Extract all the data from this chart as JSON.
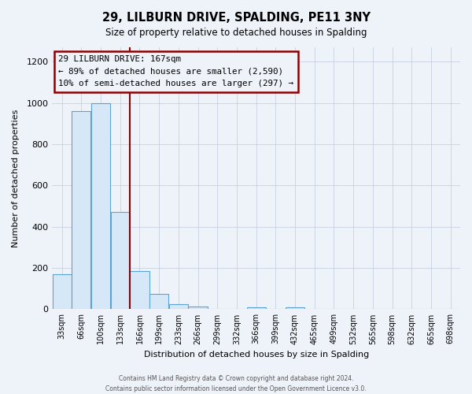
{
  "title": "29, LILBURN DRIVE, SPALDING, PE11 3NY",
  "subtitle": "Size of property relative to detached houses in Spalding",
  "xlabel": "Distribution of detached houses by size in Spalding",
  "ylabel": "Number of detached properties",
  "bin_labels": [
    "33sqm",
    "66sqm",
    "100sqm",
    "133sqm",
    "166sqm",
    "199sqm",
    "233sqm",
    "266sqm",
    "299sqm",
    "332sqm",
    "366sqm",
    "399sqm",
    "432sqm",
    "465sqm",
    "499sqm",
    "532sqm",
    "565sqm",
    "598sqm",
    "632sqm",
    "665sqm",
    "698sqm"
  ],
  "heights": [
    170,
    960,
    1000,
    470,
    185,
    75,
    25,
    15,
    0,
    0,
    10,
    0,
    10,
    0,
    0,
    0,
    0,
    0,
    0,
    0,
    0
  ],
  "bar_fill": "#d6e8f7",
  "bar_edge": "#5ba3d0",
  "property_bar_index": 4,
  "property_line_color": "#8b0000",
  "annotation_line1": "29 LILBURN DRIVE: 167sqm",
  "annotation_line2": "← 89% of detached houses are smaller (2,590)",
  "annotation_line3": "10% of semi-detached houses are larger (297) →",
  "annotation_box_color": "#8b0000",
  "ylim": [
    0,
    1270
  ],
  "yticks": [
    0,
    200,
    400,
    600,
    800,
    1000,
    1200
  ],
  "background_color": "#eef2f9",
  "grid_color": "#c8d0e0",
  "footer_line1": "Contains HM Land Registry data © Crown copyright and database right 2024.",
  "footer_line2": "Contains public sector information licensed under the Open Government Licence v3.0."
}
